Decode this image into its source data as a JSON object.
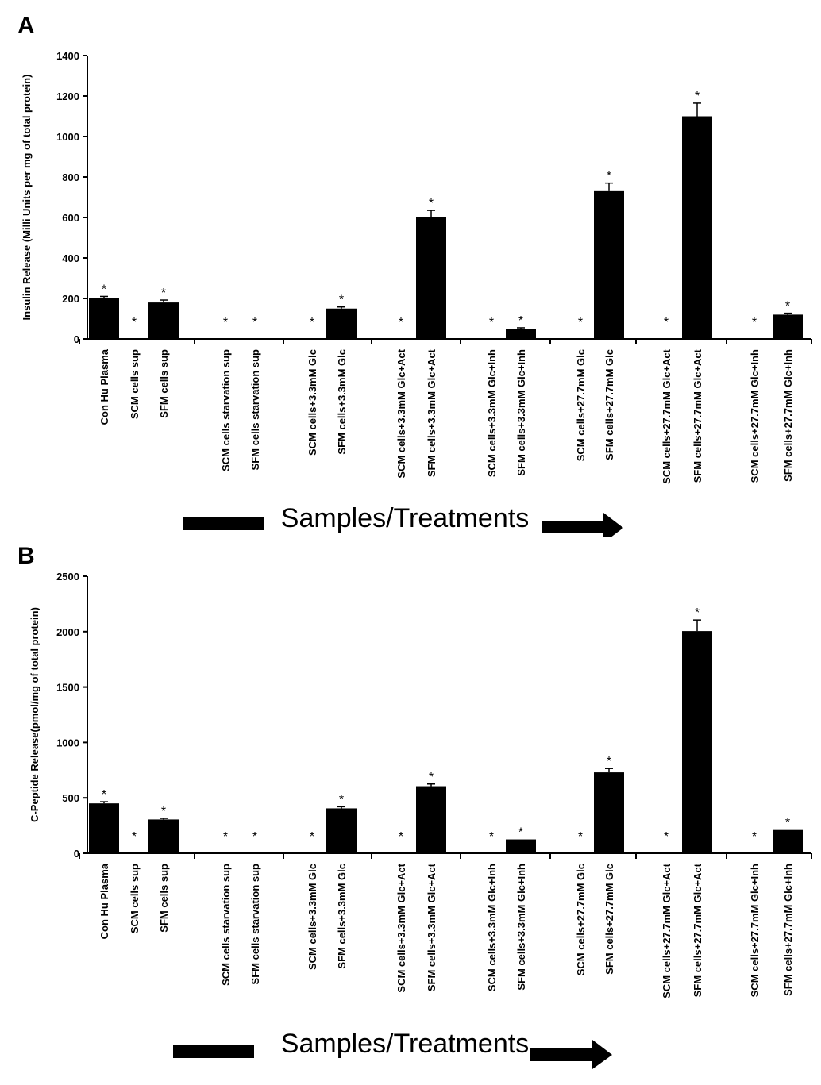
{
  "chart_data": [
    {
      "panel": "A",
      "type": "bar",
      "xlabel": "Samples/Treatments",
      "ylabel": "Insulin Release (Milli Units per mg of total protein)",
      "ylim": [
        0,
        1400
      ],
      "yticks": [
        "0",
        "200",
        "400",
        "600",
        "800",
        "1000",
        "1200",
        "1400"
      ],
      "grid": false,
      "categories": [
        "Con Hu Plasma",
        "SCM cells sup",
        "SFM cells sup",
        "SCM cells starvation sup",
        "SFM cells starvation sup",
        "SCM cells+3.3mM Glc",
        "SFM cells+3.3mM Glc",
        "SCM cells+3.3mM Glc+Act",
        "SFM cells+3.3mM Glc+Act",
        "SCM cells+3.3mM Glc+Inh",
        "SFM cells+3.3mM Glc+Inh",
        "SCM cells+27.7mM Glc",
        "SFM cells+27.7mM Glc",
        "SCM cells+27.7mM Glc+Act",
        "SFM cells+27.7mM Glc+Act",
        "SCM cells+27.7mM Glc+Inh",
        "SFM cells+27.7mM Glc+Inh"
      ],
      "values": [
        200,
        0,
        180,
        0,
        0,
        0,
        150,
        0,
        600,
        0,
        50,
        0,
        730,
        0,
        1100,
        0,
        120
      ],
      "errors": [
        10,
        0,
        12,
        0,
        0,
        0,
        8,
        0,
        35,
        0,
        5,
        0,
        40,
        0,
        65,
        0,
        7
      ],
      "significance": [
        "*",
        "*",
        "*",
        "*",
        "*",
        "*",
        "*",
        "*",
        "*",
        "*",
        "*",
        "*",
        "*",
        "*",
        "*",
        "*",
        "*"
      ]
    },
    {
      "panel": "B",
      "type": "bar",
      "xlabel": "Samples/Treatments",
      "ylabel": "C-Peptide Release(pmol/mg of total protein)",
      "ylim": [
        0,
        2500
      ],
      "yticks": [
        "0",
        "500",
        "1000",
        "1500",
        "2000",
        "2500"
      ],
      "grid": false,
      "categories": [
        "Con Hu Plasma",
        "SCM cells sup",
        "SFM cells sup",
        "SCM cells starvation sup",
        "SFM cells starvation sup",
        "SCM cells+3.3mM Glc",
        "SFM cells+3.3mM Glc",
        "SCM cells+3.3mM Glc+Act",
        "SFM cells+3.3mM Glc+Act",
        "SCM cells+3.3mM Glc+Inh",
        "SFM cells+3.3mM Glc+Inh",
        "SCM cells+27.7mM Glc",
        "SFM cells+27.7mM Glc",
        "SCM cells+27.7mM Glc+Act",
        "SFM cells+27.7mM Glc+Act",
        "SCM cells+27.7mM Glc+Inh",
        "SFM cells+27.7mM Glc+Inh"
      ],
      "values": [
        450,
        0,
        305,
        0,
        0,
        0,
        405,
        0,
        605,
        0,
        125,
        0,
        730,
        0,
        2005,
        0,
        210
      ],
      "errors": [
        15,
        0,
        10,
        0,
        0,
        0,
        15,
        0,
        20,
        0,
        0,
        0,
        35,
        0,
        100,
        0,
        0
      ],
      "significance": [
        "*",
        "*",
        "*",
        "*",
        "*",
        "*",
        "*",
        "*",
        "*",
        "*",
        "*",
        "*",
        "*",
        "*",
        "*",
        "*",
        "*"
      ]
    }
  ]
}
